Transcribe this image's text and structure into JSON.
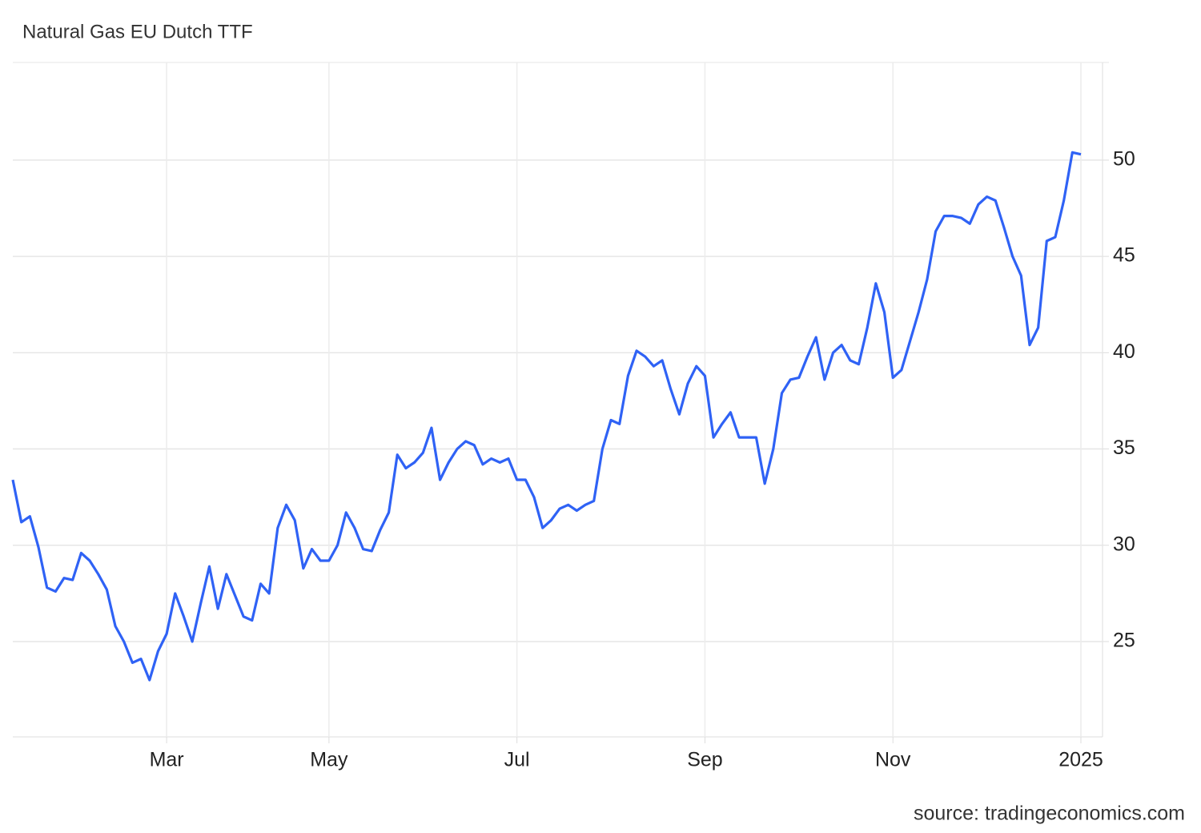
{
  "chart_data": {
    "type": "line",
    "title": "Natural Gas EU Dutch TTF",
    "source": "source: tradingeconomics.com",
    "categories": [
      null,
      null,
      null,
      null,
      null,
      null,
      null,
      null,
      null,
      null,
      null,
      null,
      null,
      null,
      null,
      null,
      null,
      null,
      "Mar",
      null,
      null,
      null,
      null,
      null,
      null,
      null,
      null,
      null,
      null,
      null,
      null,
      null,
      null,
      null,
      null,
      null,
      null,
      "May",
      null,
      null,
      null,
      null,
      null,
      null,
      null,
      null,
      null,
      null,
      null,
      null,
      null,
      null,
      null,
      null,
      null,
      null,
      null,
      null,
      null,
      "Jul",
      null,
      null,
      null,
      null,
      null,
      null,
      null,
      null,
      null,
      null,
      null,
      null,
      null,
      null,
      null,
      null,
      null,
      null,
      null,
      null,
      null,
      "Sep",
      null,
      null,
      null,
      null,
      null,
      null,
      null,
      null,
      null,
      null,
      null,
      null,
      null,
      null,
      null,
      null,
      null,
      null,
      null,
      null,
      null,
      "Nov",
      null,
      null,
      null,
      null,
      null,
      null,
      null,
      null,
      null,
      null,
      null,
      null,
      null,
      null,
      null,
      null,
      null,
      null,
      null,
      null,
      null,
      "2025"
    ],
    "values": [
      33.4,
      31.2,
      31.5,
      29.9,
      27.8,
      27.6,
      28.3,
      28.2,
      29.6,
      29.2,
      28.5,
      27.7,
      25.8,
      25.0,
      23.9,
      24.1,
      23.0,
      24.5,
      25.4,
      27.5,
      26.3,
      25.0,
      27.0,
      28.9,
      26.7,
      28.5,
      27.4,
      26.3,
      26.1,
      28.0,
      27.5,
      30.9,
      32.1,
      31.3,
      28.8,
      29.8,
      29.2,
      29.2,
      30.0,
      31.7,
      30.9,
      29.8,
      29.7,
      30.8,
      31.7,
      34.7,
      34.0,
      34.3,
      34.8,
      36.1,
      33.4,
      34.3,
      35.0,
      35.4,
      35.2,
      34.2,
      34.5,
      34.3,
      34.5,
      33.4,
      33.4,
      32.5,
      30.9,
      31.3,
      31.9,
      32.1,
      31.8,
      32.1,
      32.3,
      35.0,
      36.5,
      36.3,
      38.8,
      40.1,
      39.8,
      39.3,
      39.6,
      38.1,
      36.8,
      38.4,
      39.3,
      38.8,
      35.6,
      36.3,
      36.9,
      35.6,
      35.6,
      35.6,
      33.2,
      35.0,
      37.9,
      38.6,
      38.7,
      39.8,
      40.8,
      38.6,
      40.0,
      40.4,
      39.6,
      39.4,
      41.3,
      43.6,
      42.1,
      38.7,
      39.1,
      40.6,
      42.1,
      43.8,
      46.3,
      47.1,
      47.1,
      47.0,
      46.7,
      47.7,
      48.1,
      47.9,
      46.5,
      45.0,
      44.0,
      40.4,
      41.3,
      45.8,
      46.0,
      47.9,
      50.4,
      50.3
    ],
    "color": "#2f62f5",
    "ylim": [
      20.05,
      55.07
    ],
    "yticks": [
      25,
      30,
      35,
      40,
      45,
      50
    ],
    "grid": true
  }
}
